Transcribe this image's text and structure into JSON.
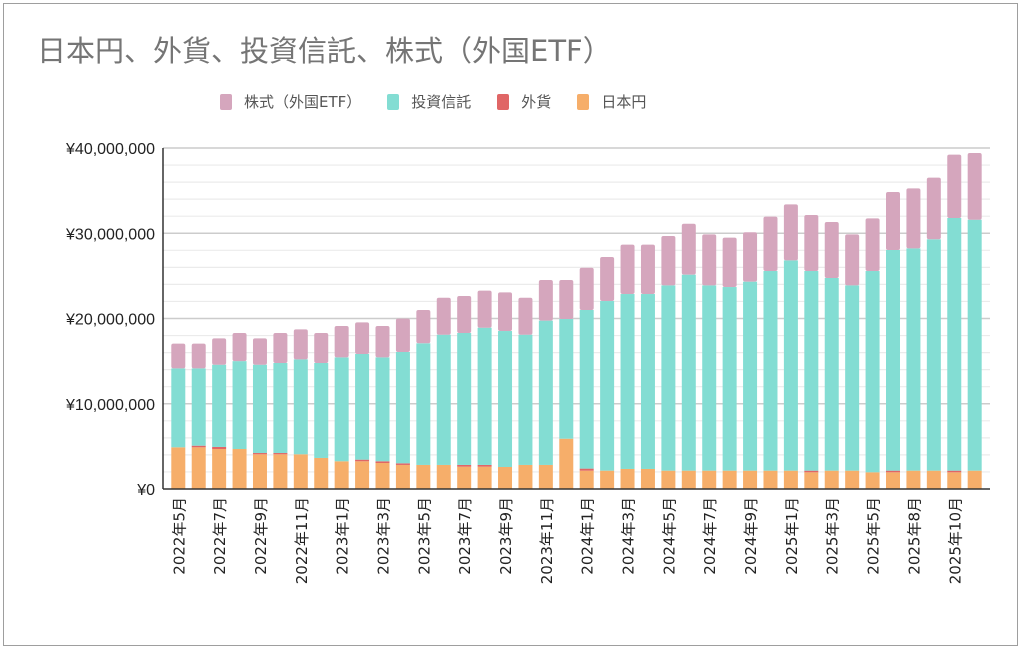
{
  "chart_data": {
    "type": "bar",
    "stacked": true,
    "title": "日本円、外貨、投資信託、株式（外国ETF）",
    "xlabel": "",
    "ylabel": "",
    "ylim": [
      0,
      40000000
    ],
    "yticks": [
      0,
      10000000,
      20000000,
      30000000,
      40000000
    ],
    "ytick_labels": [
      "¥0",
      "¥10,000,000",
      "¥20,000,000",
      "¥30,000,000",
      "¥40,000,000"
    ],
    "grid": true,
    "legend_position": "top",
    "categories": [
      "2022年5月",
      "",
      "2022年7月",
      "",
      "2022年9月",
      "",
      "2022年11月",
      "",
      "2023年1月",
      "",
      "2023年3月",
      "",
      "2023年5月",
      "",
      "2023年7月",
      "",
      "2023年9月",
      "",
      "2023年11月",
      "",
      "2024年1月",
      "",
      "2024年3月",
      "",
      "2024年5月",
      "",
      "2024年7月",
      "",
      "2024年9月",
      "",
      "2025年1月",
      "",
      "2025年3月",
      "",
      "2025年5月",
      "",
      "2025年8月",
      "",
      "2025年10月",
      ""
    ],
    "series": [
      {
        "name": "日本円",
        "color": "#f6ae6a",
        "values": [
          4890000,
          4890000,
          4690000,
          4690000,
          4070000,
          4070000,
          4070000,
          3640000,
          3250000,
          3250000,
          3050000,
          2820000,
          2820000,
          2820000,
          2620000,
          2620000,
          2580000,
          2820000,
          2820000,
          5900000,
          2150000,
          2150000,
          2350000,
          2350000,
          2150000,
          2150000,
          2150000,
          2150000,
          2150000,
          2150000,
          2150000,
          1960000,
          2150000,
          2150000,
          1960000,
          1960000,
          2150000,
          2150000,
          1960000,
          2150000
        ]
      },
      {
        "name": "外貨",
        "color": "#e06666",
        "values": [
          0,
          190000,
          240000,
          0,
          150000,
          150000,
          0,
          0,
          0,
          190000,
          200000,
          190000,
          0,
          0,
          200000,
          200000,
          0,
          0,
          0,
          0,
          240000,
          0,
          0,
          0,
          0,
          0,
          0,
          0,
          0,
          0,
          0,
          190000,
          0,
          0,
          0,
          190000,
          0,
          0,
          190000,
          0
        ]
      },
      {
        "name": "投資信託",
        "color": "#83ddd3",
        "values": [
          9260000,
          9070000,
          9650000,
          10310000,
          10360000,
          10560000,
          11140000,
          11140000,
          12190000,
          12400000,
          12190000,
          13060000,
          14270000,
          15280000,
          15480000,
          16100000,
          15950000,
          15280000,
          16930000,
          14040000,
          18610000,
          19900000,
          20520000,
          20520000,
          21740000,
          22990000,
          21740000,
          21540000,
          22170000,
          23420000,
          24670000,
          23420000,
          22600000,
          21740000,
          23610000,
          25890000,
          26080000,
          27140000,
          29640000,
          29440000
        ]
      },
      {
        "name": "株式（外国ETF）",
        "color": "#d5a6bd",
        "values": [
          2900000,
          2900000,
          3090000,
          3300000,
          3090000,
          3520000,
          3520000,
          3520000,
          3680000,
          3710000,
          3680000,
          3910000,
          3910000,
          4340000,
          4340000,
          4350000,
          4540000,
          4340000,
          4770000,
          4580000,
          4960000,
          5160000,
          5790000,
          5790000,
          5790000,
          5980000,
          5980000,
          5790000,
          5790000,
          6380000,
          6570000,
          6570000,
          6570000,
          5980000,
          6180000,
          6800000,
          7040000,
          7230000,
          7430000,
          7820000
        ]
      }
    ],
    "legend_order": [
      "株式（外国ETF）",
      "投資信託",
      "外貨",
      "日本円"
    ]
  }
}
